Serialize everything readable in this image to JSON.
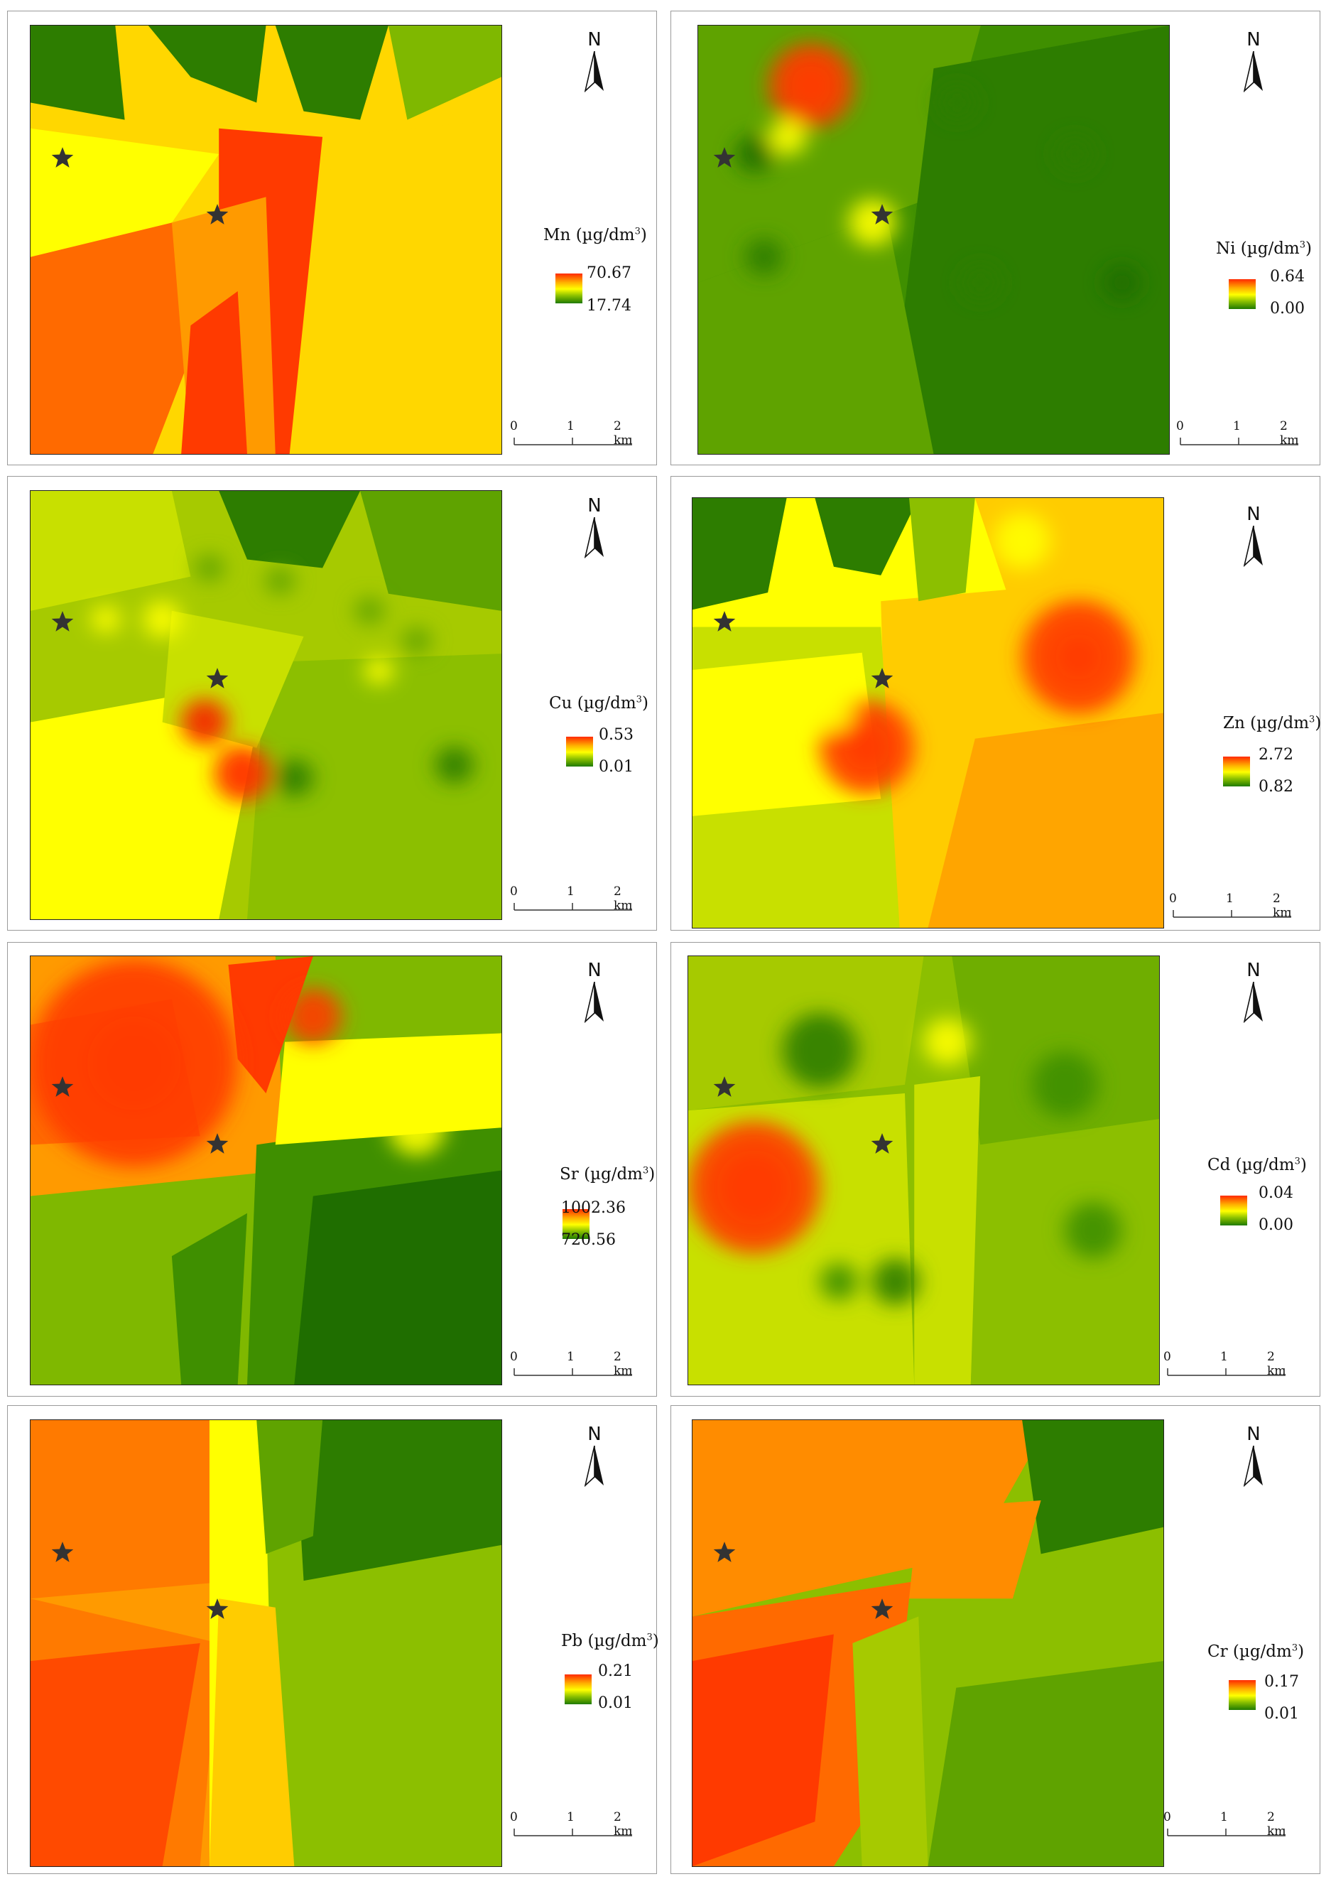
{
  "north_label": "N",
  "legend_unit": "(µg/dm",
  "legend_unit_exp": "3",
  "legend_unit_close": ")",
  "scale_ticks": [
    "0",
    "1",
    "2 km"
  ],
  "panels": [
    {
      "element": "Mn",
      "max": "70.67",
      "min": "17.74",
      "colors": [
        "#ffff00",
        "#ffd700",
        "#ff9a00",
        "#ff6a00",
        "#ff3a00",
        "#c8e000",
        "#7fb800",
        "#2d7d00"
      ]
    },
    {
      "element": "Ni",
      "max": "0.64",
      "min": "0.00",
      "colors": [
        "#3f8f00",
        "#5fa300",
        "#8cbf00",
        "#c8e000",
        "#ffff00",
        "#ff3a00",
        "#2d7d00",
        "#1f6e00"
      ]
    },
    {
      "element": "Cu",
      "max": "0.53",
      "min": "0.01",
      "colors": [
        "#a6ca00",
        "#c8e000",
        "#8cbf00",
        "#ffff00",
        "#ff2a00",
        "#2d7d00",
        "#5fa300",
        "#e6f000"
      ]
    },
    {
      "element": "Zn",
      "max": "2.72",
      "min": "0.82",
      "colors": [
        "#ffcc00",
        "#ffa500",
        "#ff8c00",
        "#ffff00",
        "#ff3a00",
        "#2d7d00",
        "#8cbf00",
        "#c8e000"
      ]
    },
    {
      "element": "Sr",
      "max": "1002.36",
      "min": "720.56",
      "colors": [
        "#ff9a00",
        "#ff6a00",
        "#ff3a00",
        "#ffff00",
        "#c8e000",
        "#7fb800",
        "#3f8f00",
        "#1f6e00"
      ]
    },
    {
      "element": "Cd",
      "max": "0.04",
      "min": "0.00",
      "colors": [
        "#8cbf00",
        "#6fae00",
        "#a6ca00",
        "#c8e000",
        "#ff3a00",
        "#ffff00",
        "#2d7d00",
        "#3f8f00"
      ]
    },
    {
      "element": "Pb",
      "max": "0.21",
      "min": "0.01",
      "colors": [
        "#ff9a00",
        "#ff7a00",
        "#ff4a00",
        "#ffcc00",
        "#ffff00",
        "#8cbf00",
        "#5fa300",
        "#2d7d00"
      ]
    },
    {
      "element": "Cr",
      "max": "0.17",
      "min": "0.01",
      "colors": [
        "#ff8c00",
        "#ff6a00",
        "#ff3a00",
        "#a6ca00",
        "#8cbf00",
        "#5fa300",
        "#2d7d00",
        "#ffcc00"
      ]
    }
  ]
}
